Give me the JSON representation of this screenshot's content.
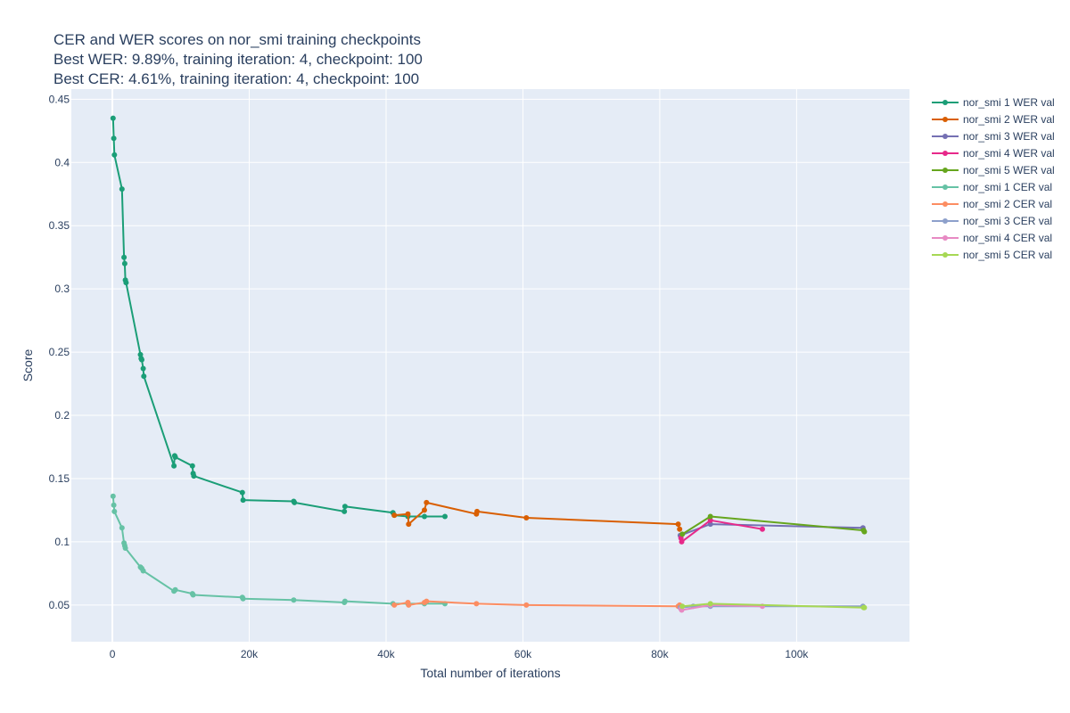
{
  "chart_data": {
    "type": "line",
    "title": [
      "CER and WER scores on nor_smi training checkpoints",
      "Best WER: 9.89%, training iteration: 4, checkpoint: 100",
      "Best CER: 4.61%, training iteration: 4, checkpoint: 100"
    ],
    "xlabel": "Total number of iterations",
    "ylabel": "Score",
    "xlim": [
      -6000,
      116500
    ],
    "ylim": [
      0.021,
      0.458
    ],
    "x_ticks": [
      0,
      20000,
      40000,
      60000,
      80000,
      100000
    ],
    "x_tick_labels": [
      "0",
      "20k",
      "40k",
      "60k",
      "80k",
      "100k"
    ],
    "y_ticks": [
      0.05,
      0.1,
      0.15,
      0.2,
      0.25,
      0.3,
      0.35,
      0.4,
      0.45
    ],
    "y_tick_labels": [
      "0.05",
      "0.1",
      "0.15",
      "0.2",
      "0.25",
      "0.3",
      "0.35",
      "0.4",
      "0.45"
    ],
    "grid": true,
    "legend_position": "right",
    "plot_background": "#e5ecf6",
    "series": [
      {
        "name": "nor_smi 1 WER val",
        "color": "#1b9e77",
        "x": [
          100,
          200,
          300,
          1400,
          1700,
          1800,
          1900,
          2000,
          4100,
          4200,
          4300,
          4500,
          4600,
          9000,
          9100,
          9200,
          11700,
          11800,
          11900,
          19000,
          19100,
          26500,
          26600,
          33900,
          34000,
          41000,
          41200,
          43200,
          45600,
          48600
        ],
        "y": [
          0.435,
          0.419,
          0.406,
          0.379,
          0.325,
          0.32,
          0.307,
          0.305,
          0.248,
          0.245,
          0.244,
          0.237,
          0.231,
          0.16,
          0.168,
          0.167,
          0.16,
          0.154,
          0.152,
          0.139,
          0.133,
          0.132,
          0.131,
          0.124,
          0.128,
          0.123,
          0.121,
          0.12,
          0.12,
          0.12
        ]
      },
      {
        "name": "nor_smi 2 WER val",
        "color": "#d95f02",
        "x": [
          41200,
          43200,
          43300,
          45600,
          45900,
          53200,
          53300,
          60500,
          82700,
          82900
        ],
        "y": [
          0.121,
          0.122,
          0.114,
          0.125,
          0.131,
          0.122,
          0.124,
          0.119,
          0.114,
          0.11
        ]
      },
      {
        "name": "nor_smi 3 WER val",
        "color": "#7570b3",
        "x": [
          83000,
          87400,
          109700
        ],
        "y": [
          0.105,
          0.114,
          0.111
        ]
      },
      {
        "name": "nor_smi 4 WER val",
        "color": "#e7298a",
        "x": [
          83100,
          83200,
          87400,
          95000
        ],
        "y": [
          0.103,
          0.1,
          0.117,
          0.11
        ]
      },
      {
        "name": "nor_smi 5 WER val",
        "color": "#66a61e",
        "x": [
          83300,
          87400,
          109800,
          109900
        ],
        "y": [
          0.106,
          0.12,
          0.109,
          0.108
        ]
      },
      {
        "name": "nor_smi 1 CER val",
        "color": "#66c2a5",
        "x": [
          100,
          200,
          300,
          1400,
          1700,
          1800,
          1900,
          4100,
          4300,
          4500,
          9000,
          9200,
          11700,
          11800,
          19000,
          19100,
          26500,
          33900,
          34000,
          41000,
          43200,
          45600,
          48600
        ],
        "y": [
          0.136,
          0.129,
          0.124,
          0.111,
          0.099,
          0.097,
          0.095,
          0.08,
          0.079,
          0.077,
          0.061,
          0.062,
          0.059,
          0.058,
          0.056,
          0.055,
          0.054,
          0.052,
          0.053,
          0.051,
          0.051,
          0.051,
          0.051
        ]
      },
      {
        "name": "nor_smi 2 CER val",
        "color": "#fc8d62",
        "x": [
          41200,
          43200,
          43300,
          45600,
          45900,
          53200,
          60500,
          82700,
          82900
        ],
        "y": [
          0.05,
          0.052,
          0.05,
          0.052,
          0.053,
          0.051,
          0.05,
          0.049,
          0.05
        ]
      },
      {
        "name": "nor_smi 3 CER val",
        "color": "#8da0cb",
        "x": [
          83000,
          84900,
          87400,
          109700
        ],
        "y": [
          0.048,
          0.049,
          0.049,
          0.049
        ]
      },
      {
        "name": "nor_smi 4 CER val",
        "color": "#e78ac3",
        "x": [
          83100,
          83200,
          87400,
          95000
        ],
        "y": [
          0.047,
          0.046,
          0.05,
          0.049
        ]
      },
      {
        "name": "nor_smi 5 CER val",
        "color": "#a6d854",
        "x": [
          83300,
          87400,
          109800,
          109900
        ],
        "y": [
          0.049,
          0.051,
          0.048,
          0.048
        ]
      }
    ]
  }
}
